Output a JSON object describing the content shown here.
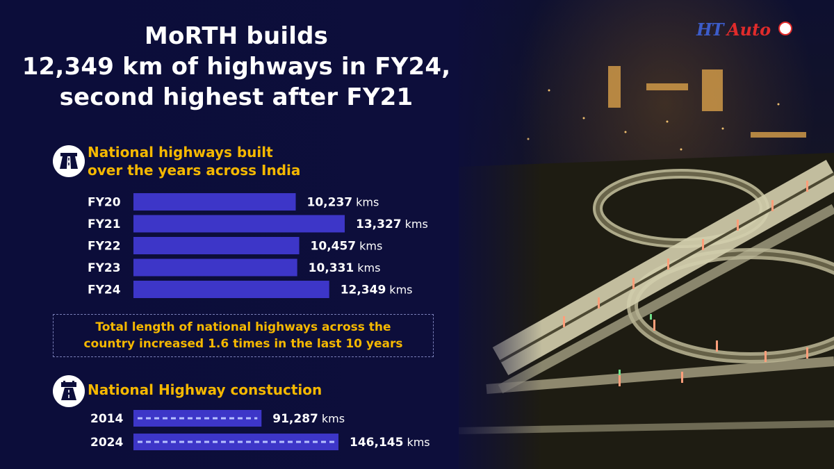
{
  "title": {
    "line1": "MoRTH builds",
    "line2": "12,349 km of highways in FY24,",
    "line3": "second highest after FY21"
  },
  "logo": {
    "ht": "HT",
    "auto": "Auto"
  },
  "section1": {
    "title_line1": "National highways built",
    "title_line2": "over the years across India",
    "icon": "highway-road-icon"
  },
  "note": {
    "line1": "Total length of national highways across the",
    "line2": "country increased 1.6 times in the last 10 years"
  },
  "section2": {
    "title": "National Highway constuction",
    "icon": "road-construction-icon"
  },
  "colors": {
    "bar": "#3d36c8",
    "accent": "#f5b800",
    "background": "#0c0d3a",
    "dash": "#b6c0ff"
  },
  "chart_data": [
    {
      "type": "bar",
      "orientation": "horizontal",
      "categories": [
        "FY20",
        "FY21",
        "FY22",
        "FY23",
        "FY24"
      ],
      "values": [
        10237,
        13327,
        10457,
        10331,
        12349
      ],
      "value_labels": [
        "10,237",
        "13,327",
        "10,457",
        "10,331",
        "12,349"
      ],
      "unit": "kms",
      "xlim": [
        0,
        13327
      ]
    },
    {
      "type": "bar",
      "orientation": "horizontal",
      "categories": [
        "2014",
        "2024"
      ],
      "values": [
        91287,
        146145
      ],
      "value_labels": [
        "91,287",
        "146,145"
      ],
      "unit": "kms",
      "xlim": [
        0,
        146145
      ]
    }
  ]
}
